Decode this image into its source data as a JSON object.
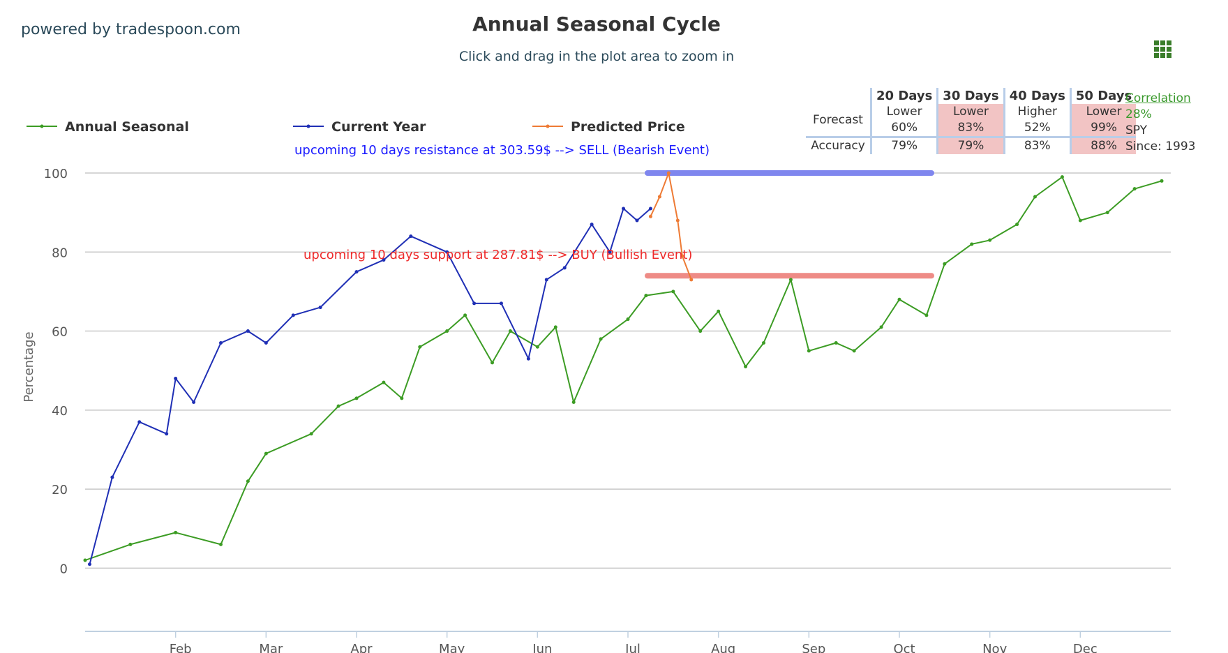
{
  "brand": "powered by tradespoon.com",
  "title": "Annual Seasonal Cycle",
  "subtitle": "Click and drag in the plot area to zoom in",
  "menu_icon": "grid-menu-icon",
  "forecast": {
    "headers": [
      "20 Days",
      "30 Days",
      "40 Days",
      "50 Days"
    ],
    "forecast_label": "Forecast",
    "accuracy_label": "Accuracy",
    "directions": [
      "Lower",
      "Lower",
      "Higher",
      "Lower"
    ],
    "probabilities": [
      "60%",
      "83%",
      "52%",
      "99%"
    ],
    "accuracy": [
      "79%",
      "79%",
      "83%",
      "88%"
    ],
    "highlight_color": "#f2c4c4"
  },
  "correlation": {
    "link": "Correlation",
    "value": "28%",
    "symbol": "SPY",
    "since": "Since: 1993"
  },
  "chart_data": {
    "type": "line",
    "ylabel": "Percentage",
    "ylim": [
      -16,
      100
    ],
    "yticks": [
      0,
      20,
      40,
      60,
      80,
      100
    ],
    "xticks": [
      "Feb",
      "Mar",
      "Apr",
      "May",
      "Jun",
      "Jul",
      "Aug",
      "Sep",
      "Oct",
      "Nov",
      "Dec"
    ],
    "grid": true,
    "legend_position": "top",
    "series": [
      {
        "name": "Annual Seasonal",
        "color": "#3c9c24",
        "x": [
          0,
          0.5,
          1,
          1.5,
          1.8,
          2.0,
          2.5,
          2.8,
          3.0,
          3.3,
          3.5,
          3.7,
          4.0,
          4.2,
          4.5,
          4.7,
          5.0,
          5.2,
          5.4,
          5.7,
          6.0,
          6.2,
          6.5,
          6.8,
          7.0,
          7.3,
          7.5,
          7.8,
          8.0,
          8.3,
          8.5,
          8.8,
          9.0,
          9.3,
          9.5,
          9.8,
          10.0,
          10.3,
          10.5,
          10.8,
          11.0,
          11.3,
          11.6,
          11.9
        ],
        "values": [
          2,
          6,
          9,
          6,
          22,
          29,
          34,
          41,
          43,
          47,
          43,
          56,
          60,
          64,
          52,
          60,
          56,
          61,
          42,
          58,
          63,
          69,
          70,
          60,
          65,
          51,
          57,
          73,
          55,
          57,
          55,
          61,
          68,
          64,
          77,
          82,
          83,
          87,
          94,
          99,
          88,
          90,
          96,
          98
        ]
      },
      {
        "name": "Current Year",
        "color": "#1f2fb5",
        "x": [
          0.05,
          0.3,
          0.6,
          0.9,
          1.0,
          1.2,
          1.5,
          1.8,
          2.0,
          2.3,
          2.6,
          3.0,
          3.3,
          3.6,
          4.0,
          4.3,
          4.6,
          4.9,
          5.1,
          5.3,
          5.6,
          5.8,
          5.95,
          6.1,
          6.25
        ],
        "values": [
          1,
          23,
          37,
          34,
          48,
          42,
          57,
          60,
          57,
          64,
          66,
          75,
          78,
          84,
          80,
          67,
          67,
          53,
          73,
          76,
          87,
          80,
          91,
          88,
          91
        ]
      },
      {
        "name": "Predicted Price",
        "color": "#ee7b35",
        "x": [
          6.25,
          6.35,
          6.45,
          6.55,
          6.6,
          6.7
        ],
        "values": [
          89,
          94,
          100,
          88,
          79,
          73
        ]
      }
    ],
    "annotations": [
      {
        "text": "upcoming 10 days resistance at 303.59$ --> SELL (Bearish Event)",
        "color": "#1a1aff",
        "level": 100,
        "band_color": "#7f86ee"
      },
      {
        "text": "upcoming 10 days support at 287.81$ --> BUY (Bullish Event)",
        "color": "#ee2a2a",
        "level": 74,
        "band_color": "#ee8b86"
      }
    ]
  }
}
